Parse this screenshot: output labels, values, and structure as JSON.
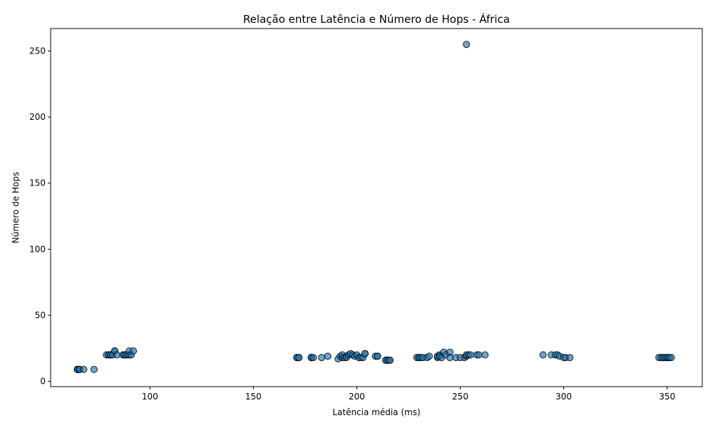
{
  "chart_data": {
    "type": "scatter",
    "title": "Relação entre Latência e Número de Hops - África",
    "xlabel": "Latência média (ms)",
    "ylabel": "Número de Hops",
    "xlim": [
      52,
      367
    ],
    "ylim": [
      -4,
      267
    ],
    "xticks": [
      100,
      150,
      200,
      250,
      300,
      350
    ],
    "yticks": [
      0,
      50,
      100,
      150,
      200,
      250
    ],
    "grid": false,
    "marker_color": "#1f77b4",
    "marker_edge_color": "#000000",
    "marker_alpha": 0.65,
    "points": [
      [
        65,
        9
      ],
      [
        65,
        9
      ],
      [
        65,
        9
      ],
      [
        65,
        9
      ],
      [
        65,
        9
      ],
      [
        65,
        9
      ],
      [
        66,
        9
      ],
      [
        66,
        9
      ],
      [
        68,
        9
      ],
      [
        73,
        9
      ],
      [
        79,
        20
      ],
      [
        80,
        20
      ],
      [
        80,
        20
      ],
      [
        81,
        20
      ],
      [
        81,
        20
      ],
      [
        82,
        20
      ],
      [
        83,
        23
      ],
      [
        83,
        23
      ],
      [
        84,
        20
      ],
      [
        87,
        20
      ],
      [
        87,
        20
      ],
      [
        88,
        20
      ],
      [
        88,
        20
      ],
      [
        89,
        20
      ],
      [
        90,
        20
      ],
      [
        90,
        23
      ],
      [
        91,
        20
      ],
      [
        92,
        23
      ],
      [
        171,
        18
      ],
      [
        171,
        18
      ],
      [
        172,
        18
      ],
      [
        172,
        18
      ],
      [
        178,
        18
      ],
      [
        178,
        18
      ],
      [
        178,
        18
      ],
      [
        179,
        18
      ],
      [
        183,
        18
      ],
      [
        186,
        19
      ],
      [
        191,
        17
      ],
      [
        192,
        19
      ],
      [
        193,
        18
      ],
      [
        193,
        20
      ],
      [
        194,
        18
      ],
      [
        195,
        19
      ],
      [
        195,
        18
      ],
      [
        196,
        20
      ],
      [
        197,
        21
      ],
      [
        198,
        20
      ],
      [
        199,
        19
      ],
      [
        200,
        20
      ],
      [
        201,
        18
      ],
      [
        202,
        18
      ],
      [
        203,
        18
      ],
      [
        204,
        21
      ],
      [
        204,
        21
      ],
      [
        209,
        19
      ],
      [
        210,
        19
      ],
      [
        210,
        19
      ],
      [
        214,
        16
      ],
      [
        214,
        16
      ],
      [
        215,
        16
      ],
      [
        215,
        16
      ],
      [
        216,
        16
      ],
      [
        216,
        16
      ],
      [
        229,
        18
      ],
      [
        230,
        18
      ],
      [
        230,
        18
      ],
      [
        231,
        18
      ],
      [
        232,
        18
      ],
      [
        234,
        18
      ],
      [
        235,
        19
      ],
      [
        239,
        18
      ],
      [
        239,
        19
      ],
      [
        240,
        20
      ],
      [
        240,
        19
      ],
      [
        241,
        18
      ],
      [
        242,
        22
      ],
      [
        243,
        20
      ],
      [
        245,
        22
      ],
      [
        245,
        18
      ],
      [
        248,
        18
      ],
      [
        250,
        18
      ],
      [
        252,
        18
      ],
      [
        253,
        19
      ],
      [
        253,
        20
      ],
      [
        254,
        20
      ],
      [
        255,
        20
      ],
      [
        258,
        20
      ],
      [
        259,
        20
      ],
      [
        262,
        20
      ],
      [
        253,
        255
      ],
      [
        290,
        20
      ],
      [
        294,
        20
      ],
      [
        296,
        20
      ],
      [
        297,
        20
      ],
      [
        298,
        19
      ],
      [
        300,
        18
      ],
      [
        301,
        18
      ],
      [
        303,
        18
      ],
      [
        346,
        18
      ],
      [
        347,
        18
      ],
      [
        348,
        18
      ],
      [
        348,
        18
      ],
      [
        349,
        18
      ],
      [
        350,
        18
      ],
      [
        350,
        18
      ],
      [
        351,
        18
      ],
      [
        351,
        18
      ],
      [
        352,
        18
      ]
    ]
  }
}
